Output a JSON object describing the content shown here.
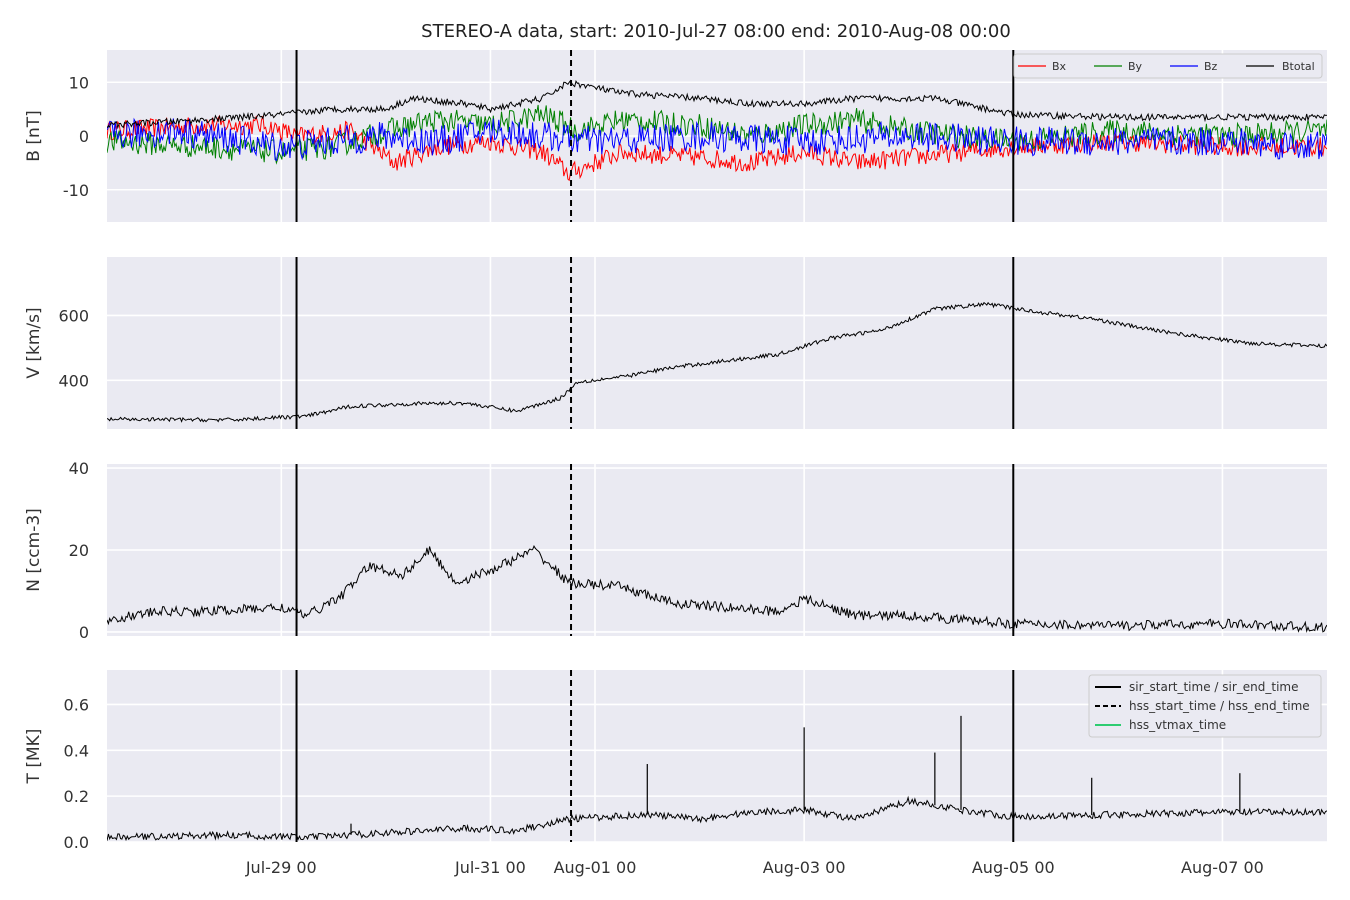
{
  "chart_data": {
    "type": "line",
    "title": "STEREO-A data, start: 2010-Jul-27 08:00  end: 2010-Aug-08 00:00",
    "x_range": [
      "2010-07-27 08:00",
      "2010-08-08 00:00"
    ],
    "x_ticks": [
      {
        "date": "2010-07-29 00:00",
        "label": "Jul-29 00"
      },
      {
        "date": "2010-07-31 00:00",
        "label": "Jul-31 00"
      },
      {
        "date": "2010-08-01 00:00",
        "label": "Aug-01 00"
      },
      {
        "date": "2010-08-03 00:00",
        "label": "Aug-03 00"
      },
      {
        "date": "2010-08-05 00:00",
        "label": "Aug-05 00"
      },
      {
        "date": "2010-08-07 00:00",
        "label": "Aug-07 00"
      }
    ],
    "event_lines": [
      {
        "name": "sir_start_time / sir_end_time",
        "style": "solid",
        "color": "#000000",
        "dates": [
          "2010-07-29 03:30",
          "2010-08-05 00:00"
        ]
      },
      {
        "name": "hss_start_time / hss_end_time",
        "style": "dashed",
        "color": "#000000",
        "dates": [
          "2010-07-31 18:30"
        ]
      },
      {
        "name": "hss_vtmax_time",
        "style": "solid",
        "color": "#2ecc71",
        "dates": []
      }
    ],
    "panels": [
      {
        "ylabel": "B [nT]",
        "ylim": [
          -16,
          16
        ],
        "yticks": [
          -10,
          0,
          10
        ],
        "grid": true,
        "legend": {
          "placement": "top-right",
          "orientation": "horizontal"
        },
        "series": [
          {
            "name": "Bx",
            "color": "#ff0000",
            "noise": 1.8,
            "points": [
              [
                "2010-07-27 08:00",
                1
              ],
              [
                "2010-07-28 06:00",
                2
              ],
              [
                "2010-07-28 20:00",
                2
              ],
              [
                "2010-07-29 04:00",
                0
              ],
              [
                "2010-07-29 16:00",
                1
              ],
              [
                "2010-07-30 02:00",
                -5
              ],
              [
                "2010-07-30 12:00",
                -2
              ],
              [
                "2010-07-31 00:00",
                -1
              ],
              [
                "2010-07-31 12:00",
                -3
              ],
              [
                "2010-07-31 18:00",
                -7
              ],
              [
                "2010-08-01 06:00",
                -3
              ],
              [
                "2010-08-02 00:00",
                -4
              ],
              [
                "2010-08-02 12:00",
                -5
              ],
              [
                "2010-08-03 00:00",
                -3
              ],
              [
                "2010-08-03 12:00",
                -5
              ],
              [
                "2010-08-04 00:00",
                -4
              ],
              [
                "2010-08-04 12:00",
                -3
              ],
              [
                "2010-08-05 00:00",
                -2
              ],
              [
                "2010-08-06 00:00",
                -1
              ],
              [
                "2010-08-07 00:00",
                -2
              ],
              [
                "2010-08-08 00:00",
                -2
              ]
            ]
          },
          {
            "name": "By",
            "color": "#008000",
            "noise": 2.2,
            "points": [
              [
                "2010-07-27 08:00",
                -1
              ],
              [
                "2010-07-28 06:00",
                -2
              ],
              [
                "2010-07-29 00:00",
                -3
              ],
              [
                "2010-07-29 12:00",
                -2
              ],
              [
                "2010-07-30 00:00",
                1
              ],
              [
                "2010-07-30 12:00",
                3
              ],
              [
                "2010-07-31 00:00",
                2
              ],
              [
                "2010-07-31 12:00",
                4
              ],
              [
                "2010-07-31 20:00",
                1
              ],
              [
                "2010-08-01 06:00",
                3
              ],
              [
                "2010-08-02 00:00",
                2
              ],
              [
                "2010-08-02 12:00",
                0
              ],
              [
                "2010-08-03 00:00",
                2
              ],
              [
                "2010-08-03 12:00",
                3
              ],
              [
                "2010-08-04 00:00",
                1
              ],
              [
                "2010-08-05 00:00",
                -1
              ],
              [
                "2010-08-06 00:00",
                1
              ],
              [
                "2010-08-07 00:00",
                0
              ],
              [
                "2010-08-08 00:00",
                1
              ]
            ]
          },
          {
            "name": "Bz",
            "color": "#0000ff",
            "noise": 2.8,
            "points": [
              [
                "2010-07-27 08:00",
                0
              ],
              [
                "2010-07-28 00:00",
                1
              ],
              [
                "2010-07-29 00:00",
                -2
              ],
              [
                "2010-07-29 12:00",
                -1
              ],
              [
                "2010-07-30 00:00",
                0
              ],
              [
                "2010-07-30 12:00",
                -1
              ],
              [
                "2010-07-31 00:00",
                1
              ],
              [
                "2010-07-31 12:00",
                0
              ],
              [
                "2010-08-01 00:00",
                -1
              ],
              [
                "2010-08-02 00:00",
                0
              ],
              [
                "2010-08-03 00:00",
                -1
              ],
              [
                "2010-08-04 00:00",
                0
              ],
              [
                "2010-08-05 00:00",
                -1
              ],
              [
                "2010-08-06 00:00",
                -1
              ],
              [
                "2010-08-07 00:00",
                -1
              ],
              [
                "2010-08-08 00:00",
                -2
              ]
            ]
          },
          {
            "name": "Btotal",
            "color": "#000000",
            "noise": 0.6,
            "points": [
              [
                "2010-07-27 08:00",
                2
              ],
              [
                "2010-07-28 06:00",
                3
              ],
              [
                "2010-07-29 00:00",
                4
              ],
              [
                "2010-07-29 12:00",
                5
              ],
              [
                "2010-07-30 00:00",
                5
              ],
              [
                "2010-07-30 06:00",
                7
              ],
              [
                "2010-07-30 18:00",
                6
              ],
              [
                "2010-07-31 00:00",
                5
              ],
              [
                "2010-07-31 12:00",
                7
              ],
              [
                "2010-07-31 18:00",
                10
              ],
              [
                "2010-08-01 06:00",
                8
              ],
              [
                "2010-08-02 00:00",
                7
              ],
              [
                "2010-08-02 12:00",
                6
              ],
              [
                "2010-08-03 00:00",
                6
              ],
              [
                "2010-08-03 12:00",
                7
              ],
              [
                "2010-08-04 06:00",
                7
              ],
              [
                "2010-08-05 00:00",
                4
              ],
              [
                "2010-08-06 00:00",
                3.5
              ],
              [
                "2010-08-07 00:00",
                3.5
              ],
              [
                "2010-08-08 00:00",
                3.5
              ]
            ]
          }
        ]
      },
      {
        "ylabel": "V [km/s]",
        "ylim": [
          250,
          780
        ],
        "yticks": [
          400,
          600
        ],
        "grid": true,
        "series": [
          {
            "name": "",
            "color": "#000000",
            "noise": 6,
            "points": [
              [
                "2010-07-27 08:00",
                280
              ],
              [
                "2010-07-28 12:00",
                278
              ],
              [
                "2010-07-29 06:00",
                290
              ],
              [
                "2010-07-29 16:00",
                320
              ],
              [
                "2010-07-30 06:00",
                328
              ],
              [
                "2010-07-30 18:00",
                330
              ],
              [
                "2010-07-31 06:00",
                305
              ],
              [
                "2010-07-31 16:00",
                345
              ],
              [
                "2010-07-31 20:00",
                395
              ],
              [
                "2010-08-01 06:00",
                410
              ],
              [
                "2010-08-01 18:00",
                440
              ],
              [
                "2010-08-02 06:00",
                460
              ],
              [
                "2010-08-02 18:00",
                480
              ],
              [
                "2010-08-03 06:00",
                530
              ],
              [
                "2010-08-03 18:00",
                555
              ],
              [
                "2010-08-04 06:00",
                620
              ],
              [
                "2010-08-04 18:00",
                635
              ],
              [
                "2010-08-05 06:00",
                610
              ],
              [
                "2010-08-05 18:00",
                590
              ],
              [
                "2010-08-06 06:00",
                560
              ],
              [
                "2010-08-06 18:00",
                535
              ],
              [
                "2010-08-07 06:00",
                515
              ],
              [
                "2010-08-08 00:00",
                505
              ]
            ]
          }
        ]
      },
      {
        "ylabel": "N [ccm-3]",
        "ylim": [
          -1,
          41
        ],
        "yticks": [
          0,
          20,
          40
        ],
        "grid": true,
        "series": [
          {
            "name": "",
            "color": "#000000",
            "noise": 1.2,
            "points": [
              [
                "2010-07-27 08:00",
                3
              ],
              [
                "2010-07-27 20:00",
                5
              ],
              [
                "2010-07-28 06:00",
                5
              ],
              [
                "2010-07-29 00:00",
                6
              ],
              [
                "2010-07-29 06:00",
                4
              ],
              [
                "2010-07-29 14:00",
                9
              ],
              [
                "2010-07-29 20:00",
                16
              ],
              [
                "2010-07-30 04:00",
                14
              ],
              [
                "2010-07-30 10:00",
                20
              ],
              [
                "2010-07-30 16:00",
                12
              ],
              [
                "2010-07-31 00:00",
                15
              ],
              [
                "2010-07-31 10:00",
                20
              ],
              [
                "2010-07-31 18:00",
                12
              ],
              [
                "2010-08-01 06:00",
                11
              ],
              [
                "2010-08-01 18:00",
                7
              ],
              [
                "2010-08-02 06:00",
                6
              ],
              [
                "2010-08-02 18:00",
                5
              ],
              [
                "2010-08-03 00:00",
                8
              ],
              [
                "2010-08-03 12:00",
                4
              ],
              [
                "2010-08-04 00:00",
                4
              ],
              [
                "2010-08-04 12:00",
                3
              ],
              [
                "2010-08-05 00:00",
                2
              ],
              [
                "2010-08-06 00:00",
                1.5
              ],
              [
                "2010-08-07 00:00",
                2
              ],
              [
                "2010-08-08 00:00",
                1
              ]
            ]
          }
        ]
      },
      {
        "ylabel": "T [MK]",
        "ylim": [
          0,
          0.75
        ],
        "yticks": [
          0.0,
          0.2,
          0.4,
          0.6
        ],
        "ytick_labels": [
          "0.0",
          "0.2",
          "0.4",
          "0.6"
        ],
        "grid": true,
        "legend": {
          "placement": "top-right",
          "orientation": "vertical"
        },
        "series": [
          {
            "name": "",
            "color": "#000000",
            "noise": 0.015,
            "points": [
              [
                "2010-07-27 08:00",
                0.02
              ],
              [
                "2010-07-28 12:00",
                0.03
              ],
              [
                "2010-07-29 06:00",
                0.02
              ],
              [
                "2010-07-30 00:00",
                0.04
              ],
              [
                "2010-07-30 18:00",
                0.06
              ],
              [
                "2010-07-31 06:00",
                0.05
              ],
              [
                "2010-07-31 18:00",
                0.1
              ],
              [
                "2010-08-01 12:00",
                0.12
              ],
              [
                "2010-08-02 00:00",
                0.1
              ],
              [
                "2010-08-02 12:00",
                0.13
              ],
              [
                "2010-08-03 00:00",
                0.14
              ],
              [
                "2010-08-03 12:00",
                0.1
              ],
              [
                "2010-08-04 00:00",
                0.18
              ],
              [
                "2010-08-04 12:00",
                0.14
              ],
              [
                "2010-08-05 00:00",
                0.11
              ],
              [
                "2010-08-06 00:00",
                0.12
              ],
              [
                "2010-08-07 00:00",
                0.13
              ],
              [
                "2010-08-08 00:00",
                0.13
              ]
            ]
          }
        ],
        "spikes": [
          [
            "2010-07-29 16:00",
            0.08
          ],
          [
            "2010-08-01 12:00",
            0.34
          ],
          [
            "2010-08-03 00:00",
            0.5
          ],
          [
            "2010-08-04 06:00",
            0.39
          ],
          [
            "2010-08-04 12:00",
            0.55
          ],
          [
            "2010-08-05 18:00",
            0.28
          ],
          [
            "2010-08-07 04:00",
            0.3
          ]
        ]
      }
    ]
  }
}
